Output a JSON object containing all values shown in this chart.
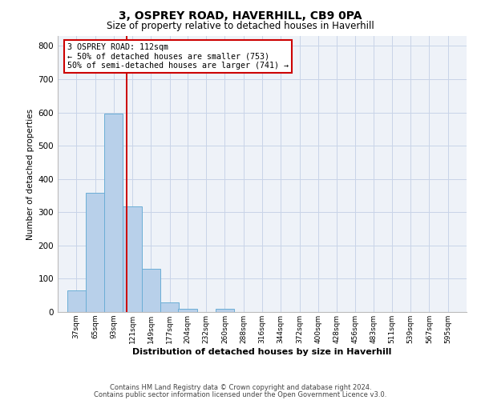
{
  "title": "3, OSPREY ROAD, HAVERHILL, CB9 0PA",
  "subtitle": "Size of property relative to detached houses in Haverhill",
  "xlabel": "Distribution of detached houses by size in Haverhill",
  "ylabel": "Number of detached properties",
  "bar_labels": [
    "37sqm",
    "65sqm",
    "93sqm",
    "121sqm",
    "149sqm",
    "177sqm",
    "204sqm",
    "232sqm",
    "260sqm",
    "288sqm",
    "316sqm",
    "344sqm",
    "372sqm",
    "400sqm",
    "428sqm",
    "456sqm",
    "483sqm",
    "511sqm",
    "539sqm",
    "567sqm",
    "595sqm"
  ],
  "bar_values": [
    65,
    358,
    597,
    318,
    130,
    28,
    10,
    0,
    10,
    0,
    0,
    0,
    0,
    0,
    0,
    0,
    0,
    0,
    0,
    0,
    0
  ],
  "bar_color": "#b8d0ea",
  "bar_edge_color": "#6baed6",
  "vline_x": 112,
  "vline_color": "#cc0000",
  "annotation_title": "3 OSPREY ROAD: 112sqm",
  "annotation_line1": "← 50% of detached houses are smaller (753)",
  "annotation_line2": "50% of semi-detached houses are larger (741) →",
  "annotation_box_color": "#cc0000",
  "ylim": [
    0,
    830
  ],
  "yticks": [
    0,
    100,
    200,
    300,
    400,
    500,
    600,
    700,
    800
  ],
  "grid_color": "#c8d4e8",
  "bg_color": "#eef2f8",
  "footer1": "Contains HM Land Registry data © Crown copyright and database right 2024.",
  "footer2": "Contains public sector information licensed under the Open Government Licence v3.0.",
  "bin_width": 28
}
